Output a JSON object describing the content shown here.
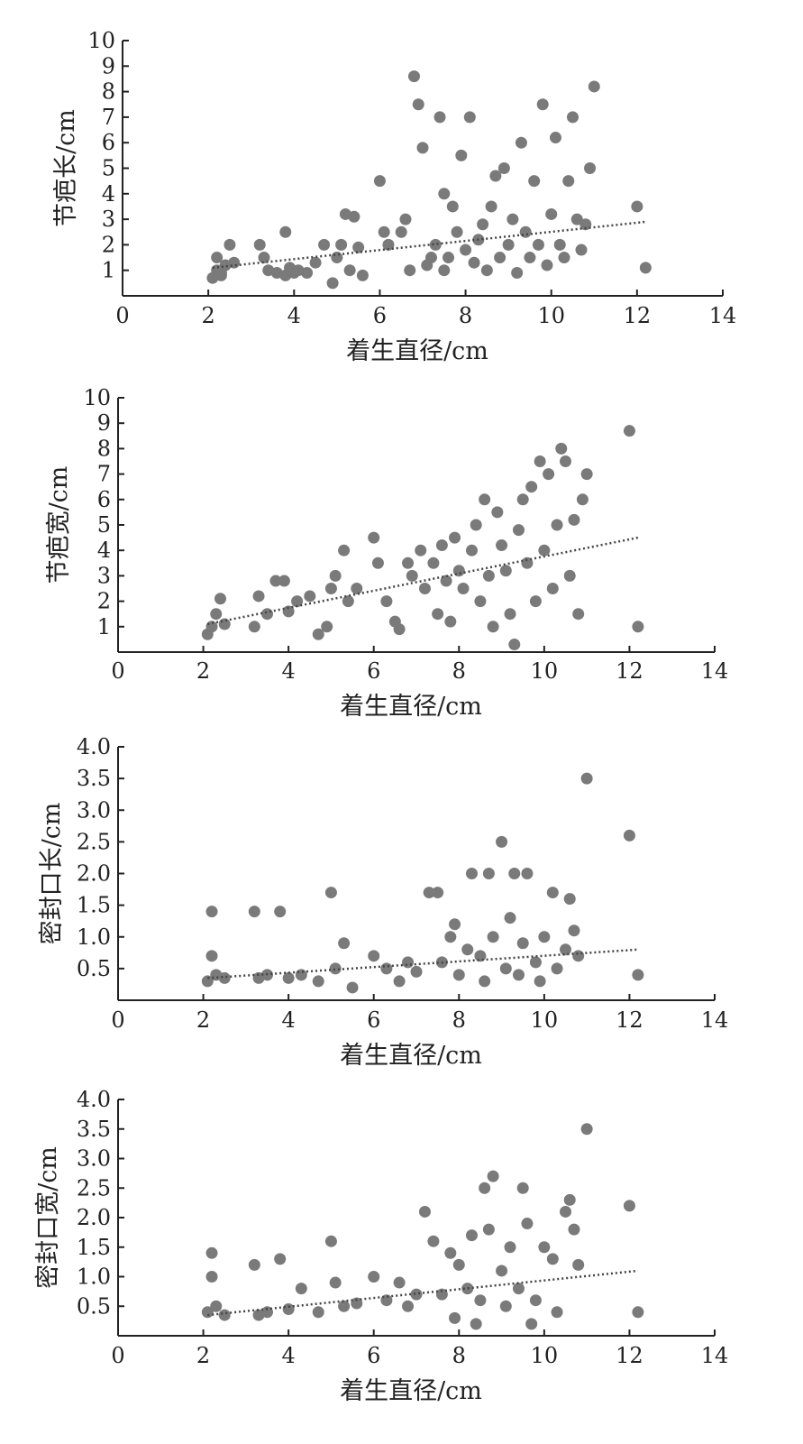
{
  "colors": {
    "point": "#7a7a7a",
    "axis": "#222222",
    "trend": "#444444"
  },
  "chart_data": [
    {
      "type": "scatter",
      "xlabel": "着生直径/cm",
      "ylabel": "节疤长/cm",
      "xlim": [
        0,
        14
      ],
      "ylim": [
        0,
        10
      ],
      "xticks": [
        "0",
        "2",
        "4",
        "6",
        "8",
        "10",
        "12",
        "14"
      ],
      "yticks": [
        "1",
        "2",
        "3",
        "4",
        "5",
        "6",
        "7",
        "8",
        "9",
        "10"
      ],
      "trendline": {
        "x": [
          2.1,
          12.2
        ],
        "y": [
          1.1,
          2.9
        ]
      },
      "points": [
        [
          2.1,
          0.7
        ],
        [
          2.2,
          1.0
        ],
        [
          2.2,
          1.5
        ],
        [
          2.3,
          0.8
        ],
        [
          2.4,
          1.2
        ],
        [
          2.5,
          2.0
        ],
        [
          2.6,
          1.3
        ],
        [
          2.3,
          0.9
        ],
        [
          3.2,
          2.0
        ],
        [
          3.3,
          1.5
        ],
        [
          3.4,
          1.0
        ],
        [
          3.6,
          0.9
        ],
        [
          3.8,
          0.8
        ],
        [
          3.9,
          1.1
        ],
        [
          4.0,
          0.9
        ],
        [
          4.1,
          1.0
        ],
        [
          3.8,
          2.5
        ],
        [
          4.3,
          0.9
        ],
        [
          4.5,
          1.3
        ],
        [
          4.7,
          2.0
        ],
        [
          4.9,
          0.5
        ],
        [
          5.0,
          1.5
        ],
        [
          5.1,
          2.0
        ],
        [
          5.2,
          3.2
        ],
        [
          5.3,
          1.0
        ],
        [
          5.4,
          3.1
        ],
        [
          5.5,
          1.9
        ],
        [
          5.6,
          0.8
        ],
        [
          6.0,
          4.5
        ],
        [
          6.1,
          2.5
        ],
        [
          6.2,
          2.0
        ],
        [
          6.5,
          2.5
        ],
        [
          6.6,
          3.0
        ],
        [
          6.7,
          1.0
        ],
        [
          6.8,
          8.6
        ],
        [
          6.9,
          7.5
        ],
        [
          7.0,
          5.8
        ],
        [
          7.1,
          1.2
        ],
        [
          7.2,
          1.5
        ],
        [
          7.3,
          2.0
        ],
        [
          7.4,
          7.0
        ],
        [
          7.5,
          4.0
        ],
        [
          7.5,
          1.0
        ],
        [
          7.6,
          1.5
        ],
        [
          7.7,
          3.5
        ],
        [
          7.8,
          2.5
        ],
        [
          7.9,
          5.5
        ],
        [
          8.0,
          1.8
        ],
        [
          8.1,
          7.0
        ],
        [
          8.2,
          1.3
        ],
        [
          8.3,
          2.2
        ],
        [
          8.4,
          2.8
        ],
        [
          8.5,
          1.0
        ],
        [
          8.6,
          3.5
        ],
        [
          8.7,
          4.7
        ],
        [
          8.8,
          1.5
        ],
        [
          8.9,
          5.0
        ],
        [
          9.0,
          2.0
        ],
        [
          9.1,
          3.0
        ],
        [
          9.2,
          0.9
        ],
        [
          9.3,
          6.0
        ],
        [
          9.4,
          2.5
        ],
        [
          9.5,
          1.5
        ],
        [
          9.6,
          4.5
        ],
        [
          9.7,
          2.0
        ],
        [
          9.8,
          7.5
        ],
        [
          9.9,
          1.2
        ],
        [
          10.0,
          3.2
        ],
        [
          10.1,
          6.2
        ],
        [
          10.2,
          2.0
        ],
        [
          10.3,
          1.5
        ],
        [
          10.4,
          4.5
        ],
        [
          10.5,
          7.0
        ],
        [
          10.6,
          3.0
        ],
        [
          10.7,
          1.8
        ],
        [
          10.8,
          2.8
        ],
        [
          10.9,
          5.0
        ],
        [
          11.0,
          8.2
        ],
        [
          12.0,
          3.5
        ],
        [
          12.2,
          1.1
        ]
      ]
    },
    {
      "type": "scatter",
      "xlabel": "着生直径/cm",
      "ylabel": "节疤宽/cm",
      "xlim": [
        0,
        14
      ],
      "ylim": [
        0,
        10
      ],
      "xticks": [
        "0",
        "2",
        "4",
        "6",
        "8",
        "10",
        "12",
        "14"
      ],
      "yticks": [
        "1",
        "2",
        "3",
        "4",
        "5",
        "6",
        "7",
        "8",
        "9",
        "10"
      ],
      "trendline": {
        "x": [
          2.1,
          12.2
        ],
        "y": [
          1.1,
          4.5
        ]
      },
      "points": [
        [
          2.1,
          0.7
        ],
        [
          2.2,
          1.0
        ],
        [
          2.3,
          1.5
        ],
        [
          2.4,
          2.1
        ],
        [
          2.5,
          1.1
        ],
        [
          3.2,
          1.0
        ],
        [
          3.3,
          2.2
        ],
        [
          3.5,
          1.5
        ],
        [
          3.7,
          2.8
        ],
        [
          3.9,
          2.8
        ],
        [
          4.0,
          1.6
        ],
        [
          4.2,
          2.0
        ],
        [
          4.5,
          2.2
        ],
        [
          4.7,
          0.7
        ],
        [
          4.9,
          1.0
        ],
        [
          5.0,
          2.5
        ],
        [
          5.1,
          3.0
        ],
        [
          5.3,
          4.0
        ],
        [
          5.4,
          2.0
        ],
        [
          5.6,
          2.5
        ],
        [
          6.0,
          4.5
        ],
        [
          6.1,
          3.5
        ],
        [
          6.3,
          2.0
        ],
        [
          6.5,
          1.2
        ],
        [
          6.6,
          0.9
        ],
        [
          6.8,
          3.5
        ],
        [
          6.9,
          3.0
        ],
        [
          7.1,
          4.0
        ],
        [
          7.2,
          2.5
        ],
        [
          7.4,
          3.5
        ],
        [
          7.5,
          1.5
        ],
        [
          7.6,
          4.2
        ],
        [
          7.7,
          2.8
        ],
        [
          7.8,
          1.2
        ],
        [
          7.9,
          4.5
        ],
        [
          8.0,
          3.2
        ],
        [
          8.1,
          2.5
        ],
        [
          8.3,
          4.0
        ],
        [
          8.4,
          5.0
        ],
        [
          8.5,
          2.0
        ],
        [
          8.6,
          6.0
        ],
        [
          8.7,
          3.0
        ],
        [
          8.8,
          1.0
        ],
        [
          8.9,
          5.5
        ],
        [
          9.0,
          4.2
        ],
        [
          9.1,
          3.2
        ],
        [
          9.2,
          1.5
        ],
        [
          9.3,
          0.3
        ],
        [
          9.4,
          4.8
        ],
        [
          9.5,
          6.0
        ],
        [
          9.6,
          3.5
        ],
        [
          9.7,
          6.5
        ],
        [
          9.8,
          2.0
        ],
        [
          9.9,
          7.5
        ],
        [
          10.0,
          4.0
        ],
        [
          10.1,
          7.0
        ],
        [
          10.2,
          2.5
        ],
        [
          10.3,
          5.0
        ],
        [
          10.4,
          8.0
        ],
        [
          10.5,
          7.5
        ],
        [
          10.6,
          3.0
        ],
        [
          10.7,
          5.2
        ],
        [
          10.8,
          1.5
        ],
        [
          10.9,
          6.0
        ],
        [
          11.0,
          7.0
        ],
        [
          12.0,
          8.7
        ],
        [
          12.2,
          1.0
        ]
      ]
    },
    {
      "type": "scatter",
      "xlabel": "着生直径/cm",
      "ylabel": "密封口长/cm",
      "xlim": [
        0,
        14
      ],
      "ylim": [
        0,
        4.0
      ],
      "xticks": [
        "0",
        "2",
        "4",
        "6",
        "8",
        "10",
        "12",
        "14"
      ],
      "yticks": [
        "0.5",
        "1.0",
        "1.5",
        "2.0",
        "2.5",
        "3.0",
        "3.5",
        "4.0"
      ],
      "trendline": {
        "x": [
          2.1,
          12.2
        ],
        "y": [
          0.35,
          0.8
        ]
      },
      "points": [
        [
          2.1,
          0.3
        ],
        [
          2.2,
          1.4
        ],
        [
          2.2,
          0.7
        ],
        [
          2.3,
          0.4
        ],
        [
          2.5,
          0.35
        ],
        [
          3.2,
          1.4
        ],
        [
          3.3,
          0.35
        ],
        [
          3.5,
          0.4
        ],
        [
          3.8,
          1.4
        ],
        [
          4.0,
          0.35
        ],
        [
          4.3,
          0.4
        ],
        [
          4.7,
          0.3
        ],
        [
          5.0,
          1.7
        ],
        [
          5.1,
          0.5
        ],
        [
          5.3,
          0.9
        ],
        [
          5.5,
          0.2
        ],
        [
          6.0,
          0.7
        ],
        [
          6.3,
          0.5
        ],
        [
          6.6,
          0.3
        ],
        [
          6.8,
          0.6
        ],
        [
          7.0,
          0.45
        ],
        [
          7.3,
          1.7
        ],
        [
          7.5,
          1.7
        ],
        [
          7.6,
          0.6
        ],
        [
          7.8,
          1.0
        ],
        [
          7.9,
          1.2
        ],
        [
          8.0,
          0.4
        ],
        [
          8.2,
          0.8
        ],
        [
          8.3,
          2.0
        ],
        [
          8.5,
          0.7
        ],
        [
          8.7,
          2.0
        ],
        [
          8.8,
          1.0
        ],
        [
          9.0,
          2.5
        ],
        [
          9.1,
          0.5
        ],
        [
          9.2,
          1.3
        ],
        [
          9.3,
          2.0
        ],
        [
          9.4,
          0.4
        ],
        [
          9.5,
          0.9
        ],
        [
          9.6,
          2.0
        ],
        [
          9.8,
          0.6
        ],
        [
          10.0,
          1.0
        ],
        [
          10.2,
          1.7
        ],
        [
          10.3,
          0.5
        ],
        [
          10.5,
          0.8
        ],
        [
          10.6,
          1.6
        ],
        [
          10.8,
          0.7
        ],
        [
          11.0,
          3.5
        ],
        [
          12.0,
          2.6
        ],
        [
          12.2,
          0.4
        ],
        [
          8.6,
          0.3
        ],
        [
          9.9,
          0.3
        ],
        [
          10.7,
          1.1
        ]
      ]
    },
    {
      "type": "scatter",
      "xlabel": "着生直径/cm",
      "ylabel": "密封口宽/cm",
      "xlim": [
        0,
        14
      ],
      "ylim": [
        0,
        4.0
      ],
      "xticks": [
        "0",
        "2",
        "4",
        "6",
        "8",
        "10",
        "12",
        "14"
      ],
      "yticks": [
        "0.5",
        "1.0",
        "1.5",
        "2.0",
        "2.5",
        "3.0",
        "3.5",
        "4.0"
      ],
      "trendline": {
        "x": [
          2.1,
          12.2
        ],
        "y": [
          0.35,
          1.1
        ]
      },
      "points": [
        [
          2.1,
          0.4
        ],
        [
          2.2,
          1.4
        ],
        [
          2.2,
          1.0
        ],
        [
          2.3,
          0.5
        ],
        [
          2.5,
          0.35
        ],
        [
          3.2,
          1.2
        ],
        [
          3.3,
          0.35
        ],
        [
          3.5,
          0.4
        ],
        [
          3.8,
          1.3
        ],
        [
          4.0,
          0.45
        ],
        [
          4.3,
          0.8
        ],
        [
          4.7,
          0.4
        ],
        [
          5.0,
          1.6
        ],
        [
          5.1,
          0.9
        ],
        [
          5.3,
          0.5
        ],
        [
          5.6,
          0.55
        ],
        [
          6.0,
          1.0
        ],
        [
          6.3,
          0.6
        ],
        [
          6.6,
          0.9
        ],
        [
          6.8,
          0.5
        ],
        [
          7.0,
          0.7
        ],
        [
          7.2,
          2.1
        ],
        [
          7.4,
          1.6
        ],
        [
          7.6,
          0.7
        ],
        [
          7.8,
          1.4
        ],
        [
          7.9,
          0.3
        ],
        [
          8.0,
          1.2
        ],
        [
          8.2,
          0.8
        ],
        [
          8.3,
          1.7
        ],
        [
          8.5,
          0.6
        ],
        [
          8.6,
          2.5
        ],
        [
          8.7,
          1.8
        ],
        [
          8.8,
          2.7
        ],
        [
          9.0,
          1.1
        ],
        [
          9.1,
          0.5
        ],
        [
          9.2,
          1.5
        ],
        [
          9.4,
          0.8
        ],
        [
          9.5,
          2.5
        ],
        [
          9.6,
          1.9
        ],
        [
          9.8,
          0.6
        ],
        [
          10.0,
          1.5
        ],
        [
          10.2,
          1.3
        ],
        [
          10.3,
          0.4
        ],
        [
          10.5,
          2.1
        ],
        [
          10.6,
          2.3
        ],
        [
          10.7,
          1.8
        ],
        [
          10.8,
          1.2
        ],
        [
          11.0,
          3.5
        ],
        [
          12.0,
          2.2
        ],
        [
          12.2,
          0.4
        ],
        [
          9.7,
          0.2
        ],
        [
          8.4,
          0.2
        ]
      ]
    }
  ]
}
